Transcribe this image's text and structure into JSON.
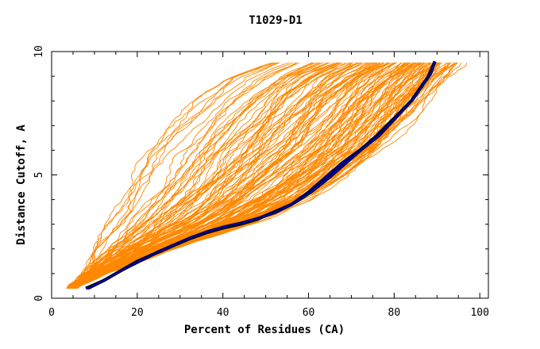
{
  "chart_data": {
    "type": "line",
    "title": "T1029-D1",
    "xlabel": "Percent of Residues (CA)",
    "ylabel": "Distance Cutoff, A",
    "xlim": [
      0,
      102
    ],
    "ylim": [
      0,
      10
    ],
    "x_ticks": [
      0,
      20,
      40,
      60,
      80,
      100
    ],
    "y_ticks": [
      0,
      5,
      10
    ],
    "grid": false,
    "legend": "none",
    "colors": {
      "models": "#ff8800",
      "highlight_fill": "#0000cc",
      "highlight_edge": "#000000"
    },
    "model_bundle": {
      "count": 140,
      "lower_envelope": {
        "x": [
          4,
          12,
          20,
          30,
          40,
          50,
          60,
          70,
          78,
          86,
          90,
          96
        ],
        "y": [
          0.4,
          1.0,
          1.5,
          2.1,
          2.6,
          3.2,
          4.0,
          5.0,
          6.0,
          7.5,
          8.5,
          9.6
        ]
      },
      "upper_envelope": {
        "x": [
          5,
          8,
          10,
          13,
          16,
          20,
          25,
          32,
          40,
          50
        ],
        "y": [
          0.4,
          1.2,
          2.0,
          3.2,
          4.5,
          5.8,
          6.8,
          8.0,
          9.0,
          9.6
        ]
      }
    },
    "series": [
      {
        "x": [
          8,
          12,
          16,
          20,
          24,
          28,
          32,
          36,
          40,
          44,
          48,
          52,
          56,
          60,
          64,
          68,
          72,
          76,
          80,
          84,
          86,
          88,
          89.5
        ],
        "y": [
          0.4,
          0.7,
          1.1,
          1.5,
          1.8,
          2.1,
          2.4,
          2.65,
          2.85,
          3.0,
          3.2,
          3.5,
          3.8,
          4.3,
          4.9,
          5.5,
          6.0,
          6.6,
          7.3,
          8.0,
          8.5,
          9.0,
          9.6
        ]
      },
      {
        "x": [
          8.5,
          12.5,
          16.5,
          20.5,
          24.5,
          28.5,
          32.5,
          36.5,
          40.5,
          44.5,
          48.5,
          52.5,
          56.5,
          60.5,
          64.5,
          68.5,
          72.5,
          76.5,
          80.5,
          84.5,
          86.5,
          88.5,
          89.5
        ],
        "y": [
          0.4,
          0.75,
          1.15,
          1.5,
          1.85,
          2.15,
          2.45,
          2.7,
          2.9,
          3.05,
          3.25,
          3.5,
          3.85,
          4.3,
          4.85,
          5.45,
          6.05,
          6.6,
          7.35,
          8.1,
          8.6,
          9.1,
          9.6
        ]
      }
    ]
  }
}
